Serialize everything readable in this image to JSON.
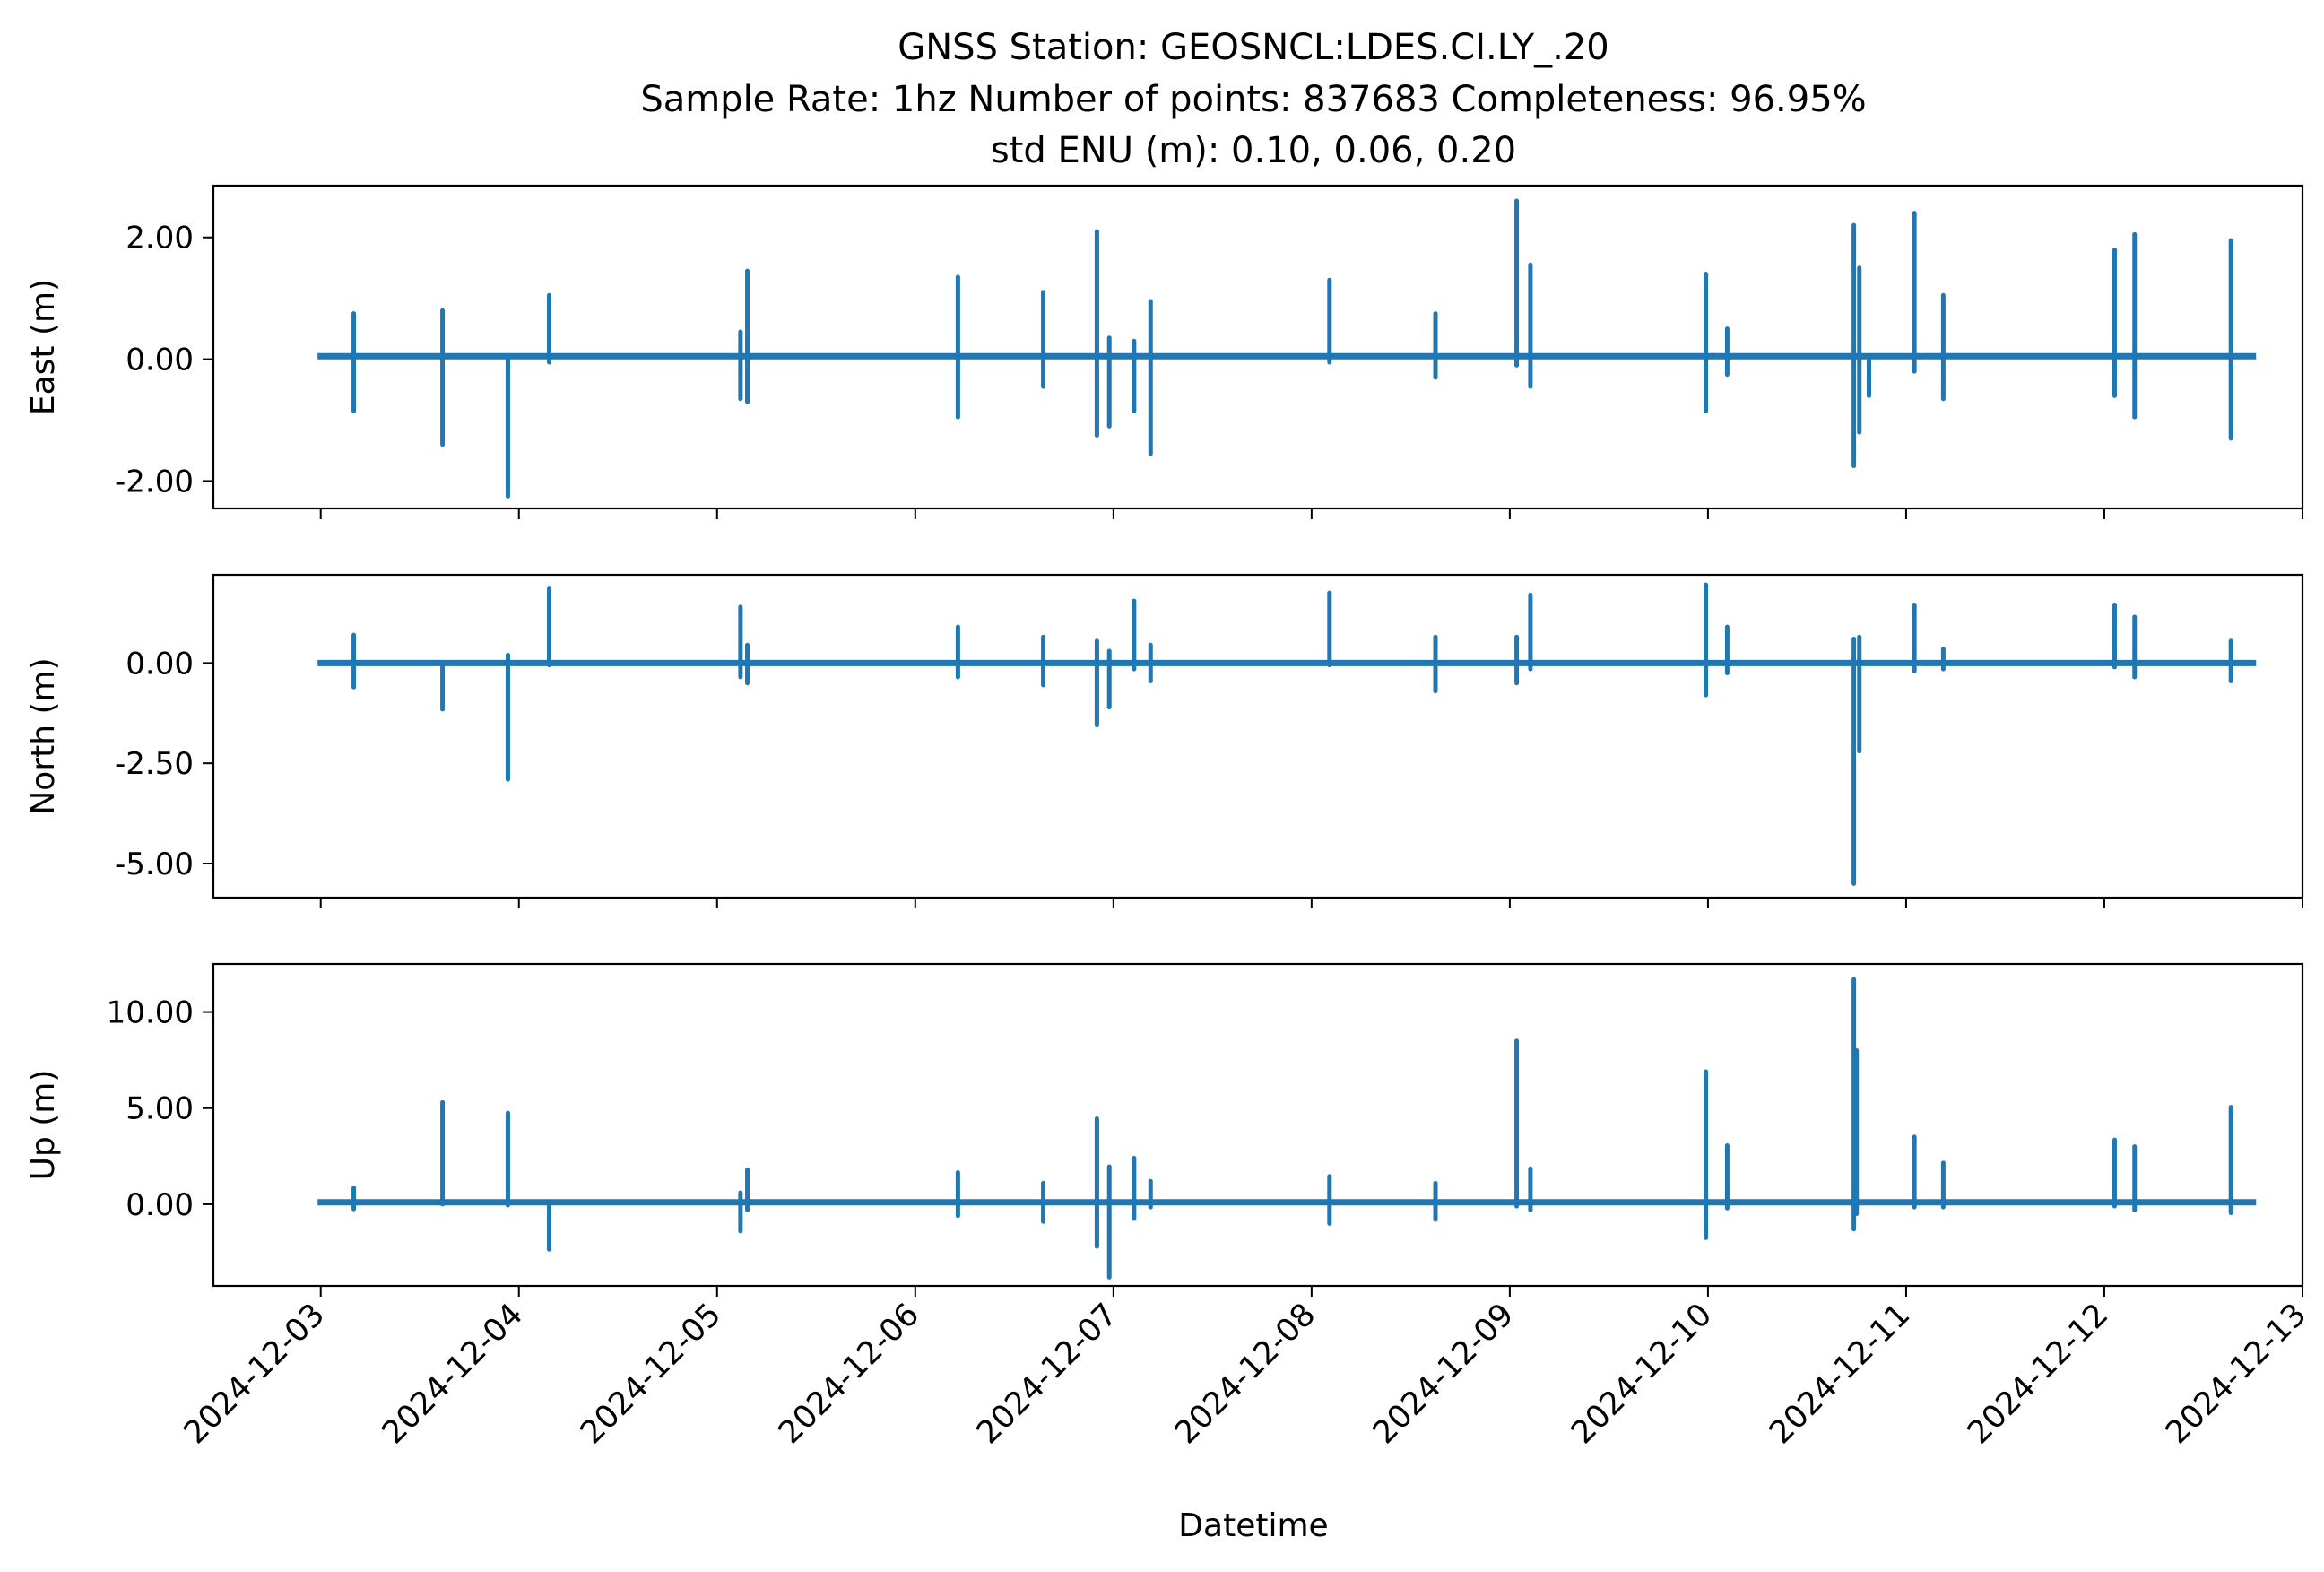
{
  "chart_data": {
    "type": "line",
    "title": {
      "line1": "GNSS Station: GEOSNCL:LDES.CI.LY_.20",
      "line2": "Sample Rate: 1hz   Number of points: 837683    Completeness:  96.95%",
      "line3": "std ENU (m):  0.10, 0.06, 0.20"
    },
    "xlabel": "Datetime",
    "x_range": [
      "2024-12-02T11:00",
      "2024-12-13T00:00"
    ],
    "x_ticks": [
      "2024-12-03",
      "2024-12-04",
      "2024-12-05",
      "2024-12-06",
      "2024-12-07",
      "2024-12-08",
      "2024-12-09",
      "2024-12-10",
      "2024-12-11",
      "2024-12-12",
      "2024-12-13"
    ],
    "data_start": "2024-12-03T00:00",
    "data_end": "2024-12-12T18:00",
    "line_color": "#1f77b4",
    "grid": false,
    "legend": "none",
    "panels": [
      {
        "ylabel": "East (m)",
        "ylim": [
          -2.45,
          2.85
        ],
        "yticks": [
          2,
          0,
          -2
        ],
        "yticklabels": [
          "2.00",
          "0.00",
          "-2.00"
        ],
        "baseline": 0.05,
        "spikes": [
          {
            "t": "2024-12-03T04:00",
            "hi": 0.75,
            "lo": -0.85
          },
          {
            "t": "2024-12-03T14:45",
            "hi": 0.8,
            "lo": -1.4
          },
          {
            "t": "2024-12-03T22:40",
            "hi": 0.0,
            "lo": -2.25
          },
          {
            "t": "2024-12-04T03:40",
            "hi": 1.05,
            "lo": -0.05
          },
          {
            "t": "2024-12-05T02:50",
            "hi": 0.45,
            "lo": -0.65
          },
          {
            "t": "2024-12-05T03:40",
            "hi": 1.45,
            "lo": -0.7
          },
          {
            "t": "2024-12-06T05:10",
            "hi": 1.35,
            "lo": -0.95
          },
          {
            "t": "2024-12-06T15:30",
            "hi": 1.1,
            "lo": -0.45
          },
          {
            "t": "2024-12-06T22:00",
            "hi": 2.1,
            "lo": -1.25
          },
          {
            "t": "2024-12-06T23:30",
            "hi": 0.35,
            "lo": -1.1
          },
          {
            "t": "2024-12-07T02:30",
            "hi": 0.3,
            "lo": -0.85
          },
          {
            "t": "2024-12-07T04:30",
            "hi": 0.95,
            "lo": -1.55
          },
          {
            "t": "2024-12-08T02:10",
            "hi": 1.3,
            "lo": -0.05
          },
          {
            "t": "2024-12-08T15:00",
            "hi": 0.75,
            "lo": -0.3
          },
          {
            "t": "2024-12-09T00:50",
            "hi": 2.6,
            "lo": -0.1
          },
          {
            "t": "2024-12-09T02:30",
            "hi": 1.55,
            "lo": -0.45
          },
          {
            "t": "2024-12-09T23:45",
            "hi": 1.4,
            "lo": -0.85
          },
          {
            "t": "2024-12-10T02:20",
            "hi": 0.5,
            "lo": -0.25
          },
          {
            "t": "2024-12-10T17:40",
            "hi": 2.2,
            "lo": -1.75
          },
          {
            "t": "2024-12-10T18:20",
            "hi": 1.5,
            "lo": -1.2
          },
          {
            "t": "2024-12-10T19:30",
            "hi": 0.05,
            "lo": -0.6
          },
          {
            "t": "2024-12-11T01:00",
            "hi": 2.4,
            "lo": -0.2
          },
          {
            "t": "2024-12-11T04:30",
            "hi": 1.05,
            "lo": -0.65
          },
          {
            "t": "2024-12-12T01:15",
            "hi": 1.8,
            "lo": -0.6
          },
          {
            "t": "2024-12-12T03:40",
            "hi": 2.05,
            "lo": -0.95
          },
          {
            "t": "2024-12-12T15:20",
            "hi": 1.95,
            "lo": -1.3
          }
        ]
      },
      {
        "ylabel": "North (m)",
        "ylim": [
          -5.85,
          2.2
        ],
        "yticks": [
          0,
          -2.5,
          -5
        ],
        "yticklabels": [
          "0.00",
          "-2.50",
          "-5.00"
        ],
        "baseline": 0.0,
        "spikes": [
          {
            "t": "2024-12-03T04:00",
            "hi": 0.7,
            "lo": -0.6
          },
          {
            "t": "2024-12-03T14:45",
            "hi": -0.05,
            "lo": -1.15
          },
          {
            "t": "2024-12-03T22:40",
            "hi": 0.2,
            "lo": -2.9
          },
          {
            "t": "2024-12-04T03:40",
            "hi": 1.85,
            "lo": -0.05
          },
          {
            "t": "2024-12-05T02:50",
            "hi": 1.4,
            "lo": -0.35
          },
          {
            "t": "2024-12-05T03:40",
            "hi": 0.45,
            "lo": -0.5
          },
          {
            "t": "2024-12-06T05:10",
            "hi": 0.9,
            "lo": -0.35
          },
          {
            "t": "2024-12-06T15:30",
            "hi": 0.65,
            "lo": -0.55
          },
          {
            "t": "2024-12-06T22:00",
            "hi": 0.55,
            "lo": -1.55
          },
          {
            "t": "2024-12-06T23:30",
            "hi": 0.3,
            "lo": -1.1
          },
          {
            "t": "2024-12-07T02:30",
            "hi": 1.55,
            "lo": -0.15
          },
          {
            "t": "2024-12-07T04:30",
            "hi": 0.45,
            "lo": -0.45
          },
          {
            "t": "2024-12-08T02:10",
            "hi": 1.75,
            "lo": -0.05
          },
          {
            "t": "2024-12-08T15:00",
            "hi": 0.65,
            "lo": -0.7
          },
          {
            "t": "2024-12-09T00:50",
            "hi": 0.65,
            "lo": -0.5
          },
          {
            "t": "2024-12-09T02:30",
            "hi": 1.7,
            "lo": -0.15
          },
          {
            "t": "2024-12-09T23:45",
            "hi": 1.95,
            "lo": -0.8
          },
          {
            "t": "2024-12-10T02:20",
            "hi": 0.9,
            "lo": -0.25
          },
          {
            "t": "2024-12-10T17:40",
            "hi": 0.6,
            "lo": -5.5
          },
          {
            "t": "2024-12-10T18:20",
            "hi": 0.65,
            "lo": -2.2
          },
          {
            "t": "2024-12-11T01:00",
            "hi": 1.45,
            "lo": -0.2
          },
          {
            "t": "2024-12-11T04:30",
            "hi": 0.35,
            "lo": -0.15
          },
          {
            "t": "2024-12-12T01:15",
            "hi": 1.45,
            "lo": -0.1
          },
          {
            "t": "2024-12-12T03:40",
            "hi": 1.15,
            "lo": -0.35
          },
          {
            "t": "2024-12-12T15:20",
            "hi": 0.55,
            "lo": -0.45
          }
        ]
      },
      {
        "ylabel": "Up (m)",
        "ylim": [
          -4.25,
          12.5
        ],
        "yticks": [
          10,
          5,
          0
        ],
        "yticklabels": [
          "10.00",
          "5.00",
          "0.00"
        ],
        "baseline": 0.1,
        "spikes": [
          {
            "t": "2024-12-03T04:00",
            "hi": 0.85,
            "lo": -0.25
          },
          {
            "t": "2024-12-03T14:45",
            "hi": 5.3,
            "lo": 0.0
          },
          {
            "t": "2024-12-03T22:40",
            "hi": 4.75,
            "lo": -0.05
          },
          {
            "t": "2024-12-04T03:40",
            "hi": 0.1,
            "lo": -2.35
          },
          {
            "t": "2024-12-05T02:50",
            "hi": 0.6,
            "lo": -1.4
          },
          {
            "t": "2024-12-05T03:40",
            "hi": 1.8,
            "lo": -0.3
          },
          {
            "t": "2024-12-06T05:10",
            "hi": 1.65,
            "lo": -0.6
          },
          {
            "t": "2024-12-06T15:30",
            "hi": 1.1,
            "lo": -0.9
          },
          {
            "t": "2024-12-06T22:00",
            "hi": 4.45,
            "lo": -2.2
          },
          {
            "t": "2024-12-06T23:30",
            "hi": 1.95,
            "lo": -3.8
          },
          {
            "t": "2024-12-07T02:30",
            "hi": 2.4,
            "lo": -0.75
          },
          {
            "t": "2024-12-07T04:30",
            "hi": 1.2,
            "lo": -0.15
          },
          {
            "t": "2024-12-08T02:10",
            "hi": 1.45,
            "lo": -1.0
          },
          {
            "t": "2024-12-08T15:00",
            "hi": 1.1,
            "lo": -0.8
          },
          {
            "t": "2024-12-09T00:50",
            "hi": 8.5,
            "lo": -0.1
          },
          {
            "t": "2024-12-09T02:30",
            "hi": 1.85,
            "lo": -0.3
          },
          {
            "t": "2024-12-09T23:45",
            "hi": 6.9,
            "lo": -1.75
          },
          {
            "t": "2024-12-10T02:20",
            "hi": 3.05,
            "lo": -0.2
          },
          {
            "t": "2024-12-10T17:40",
            "hi": 11.7,
            "lo": -1.3
          },
          {
            "t": "2024-12-10T18:00",
            "hi": 8.0,
            "lo": -0.5
          },
          {
            "t": "2024-12-11T01:00",
            "hi": 3.5,
            "lo": -0.15
          },
          {
            "t": "2024-12-11T04:30",
            "hi": 2.15,
            "lo": -0.15
          },
          {
            "t": "2024-12-12T01:15",
            "hi": 3.35,
            "lo": -0.1
          },
          {
            "t": "2024-12-12T03:40",
            "hi": 3.0,
            "lo": -0.3
          },
          {
            "t": "2024-12-12T15:20",
            "hi": 5.05,
            "lo": -0.45
          }
        ]
      }
    ]
  }
}
